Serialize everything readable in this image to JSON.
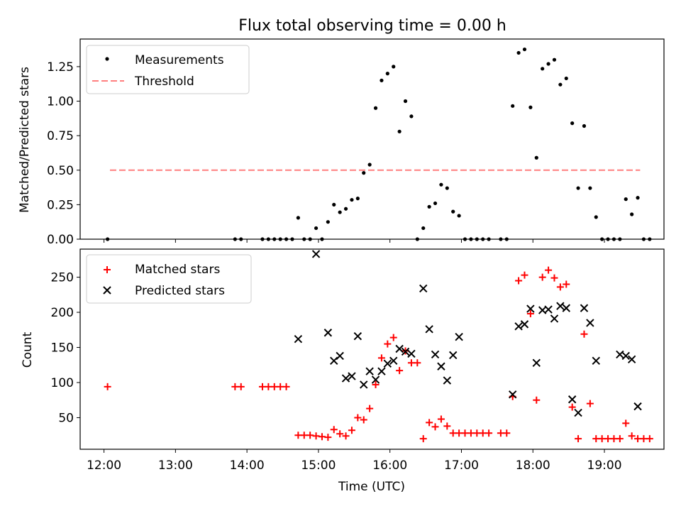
{
  "chart_data": [
    {
      "type": "scatter",
      "title": "Flux total observing time = 0.00 h",
      "xlabel": "",
      "ylabel": "Matched/Predicted stars",
      "xlim": [
        "11:40",
        "19:50"
      ],
      "ylim": [
        0,
        1.45
      ],
      "y_ticks": [
        "0.00",
        "0.25",
        "0.50",
        "0.75",
        "1.00",
        "1.25"
      ],
      "y_tick_values": [
        0,
        0.25,
        0.5,
        0.75,
        1.0,
        1.25
      ],
      "grid": false,
      "legend_position": "top-left",
      "threshold": {
        "name": "Threshold",
        "value": 0.5,
        "x_start": "12:05",
        "x_end": "19:30",
        "color": "#ff7f7f"
      },
      "series": [
        {
          "name": "Measurements",
          "marker": "dot",
          "color": "#000000",
          "points": [
            [
              "12:03",
              0.0
            ],
            [
              "13:50",
              0.0
            ],
            [
              "13:55",
              0.0
            ],
            [
              "14:13",
              0.0
            ],
            [
              "14:18",
              0.0
            ],
            [
              "14:23",
              0.0
            ],
            [
              "14:28",
              0.0
            ],
            [
              "14:33",
              0.0
            ],
            [
              "14:38",
              0.0
            ],
            [
              "14:43",
              0.155
            ],
            [
              "14:48",
              0.0
            ],
            [
              "14:53",
              0.0
            ],
            [
              "14:58",
              0.08
            ],
            [
              "15:03",
              0.0
            ],
            [
              "15:08",
              0.125
            ],
            [
              "15:13",
              0.25
            ],
            [
              "15:18",
              0.195
            ],
            [
              "15:23",
              0.22
            ],
            [
              "15:28",
              0.285
            ],
            [
              "15:33",
              0.295
            ],
            [
              "15:38",
              0.48
            ],
            [
              "15:43",
              0.54
            ],
            [
              "15:48",
              0.95
            ],
            [
              "15:53",
              1.15
            ],
            [
              "15:58",
              1.2
            ],
            [
              "16:03",
              1.25
            ],
            [
              "16:08",
              0.78
            ],
            [
              "16:13",
              1.0
            ],
            [
              "16:18",
              0.89
            ],
            [
              "16:23",
              0.0
            ],
            [
              "16:28",
              0.08
            ],
            [
              "16:33",
              0.235
            ],
            [
              "16:38",
              0.26
            ],
            [
              "16:43",
              0.395
            ],
            [
              "16:48",
              0.37
            ],
            [
              "16:53",
              0.2
            ],
            [
              "16:58",
              0.17
            ],
            [
              "17:03",
              0.0
            ],
            [
              "17:08",
              0.0
            ],
            [
              "17:13",
              0.0
            ],
            [
              "17:18",
              0.0
            ],
            [
              "17:23",
              0.0
            ],
            [
              "17:33",
              0.0
            ],
            [
              "17:38",
              0.0
            ],
            [
              "17:43",
              0.965
            ],
            [
              "17:48",
              1.35
            ],
            [
              "17:53",
              1.375
            ],
            [
              "17:58",
              0.955
            ],
            [
              "18:03",
              0.59
            ],
            [
              "18:08",
              1.235
            ],
            [
              "18:13",
              1.27
            ],
            [
              "18:18",
              1.3
            ],
            [
              "18:23",
              1.12
            ],
            [
              "18:28",
              1.165
            ],
            [
              "18:33",
              0.84
            ],
            [
              "18:38",
              0.37
            ],
            [
              "18:43",
              0.82
            ],
            [
              "18:48",
              0.37
            ],
            [
              "18:53",
              0.16
            ],
            [
              "18:58",
              0.0
            ],
            [
              "19:03",
              0.0
            ],
            [
              "19:08",
              0.0
            ],
            [
              "19:13",
              0.0
            ],
            [
              "19:18",
              0.29
            ],
            [
              "19:23",
              0.18
            ],
            [
              "19:28",
              0.3
            ],
            [
              "19:33",
              0.0
            ],
            [
              "19:38",
              0.0
            ]
          ]
        }
      ]
    },
    {
      "type": "scatter",
      "title": "",
      "xlabel": "Time (UTC)",
      "ylabel": "Count",
      "xlim": [
        "11:40",
        "19:50"
      ],
      "ylim": [
        5,
        290
      ],
      "x_ticks": [
        "12:00",
        "13:00",
        "14:00",
        "15:00",
        "16:00",
        "17:00",
        "18:00",
        "19:00"
      ],
      "y_ticks": [
        "50",
        "100",
        "150",
        "200",
        "250"
      ],
      "y_tick_values": [
        50,
        100,
        150,
        200,
        250
      ],
      "grid": false,
      "legend_position": "top-left",
      "series": [
        {
          "name": "Matched stars",
          "marker": "plus",
          "color": "#ff0000",
          "points": [
            [
              "12:03",
              94
            ],
            [
              "13:50",
              94
            ],
            [
              "13:55",
              94
            ],
            [
              "14:13",
              94
            ],
            [
              "14:18",
              94
            ],
            [
              "14:23",
              94
            ],
            [
              "14:28",
              94
            ],
            [
              "14:33",
              94
            ],
            [
              "14:43",
              25
            ],
            [
              "14:48",
              25
            ],
            [
              "14:53",
              25
            ],
            [
              "14:58",
              24
            ],
            [
              "15:03",
              23
            ],
            [
              "15:08",
              22
            ],
            [
              "15:13",
              33
            ],
            [
              "15:18",
              27
            ],
            [
              "15:23",
              24
            ],
            [
              "15:28",
              32
            ],
            [
              "15:33",
              50
            ],
            [
              "15:38",
              47
            ],
            [
              "15:43",
              63
            ],
            [
              "15:48",
              97
            ],
            [
              "15:53",
              135
            ],
            [
              "15:58",
              155
            ],
            [
              "16:03",
              164
            ],
            [
              "16:08",
              117
            ],
            [
              "16:13",
              145
            ],
            [
              "16:18",
              128
            ],
            [
              "16:23",
              128
            ],
            [
              "16:28",
              20
            ],
            [
              "16:33",
              43
            ],
            [
              "16:38",
              37
            ],
            [
              "16:43",
              48
            ],
            [
              "16:48",
              38
            ],
            [
              "16:53",
              28
            ],
            [
              "16:58",
              28
            ],
            [
              "17:03",
              28
            ],
            [
              "17:08",
              28
            ],
            [
              "17:13",
              28
            ],
            [
              "17:18",
              28
            ],
            [
              "17:23",
              28
            ],
            [
              "17:33",
              28
            ],
            [
              "17:38",
              28
            ],
            [
              "17:43",
              80
            ],
            [
              "17:48",
              245
            ],
            [
              "17:53",
              253
            ],
            [
              "17:58",
              198
            ],
            [
              "18:03",
              75
            ],
            [
              "18:08",
              250
            ],
            [
              "18:13",
              260
            ],
            [
              "18:18",
              249
            ],
            [
              "18:23",
              236
            ],
            [
              "18:28",
              240
            ],
            [
              "18:33",
              65
            ],
            [
              "18:38",
              20
            ],
            [
              "18:43",
              169
            ],
            [
              "18:48",
              70
            ],
            [
              "18:53",
              20
            ],
            [
              "18:58",
              20
            ],
            [
              "19:03",
              20
            ],
            [
              "19:08",
              20
            ],
            [
              "19:13",
              20
            ],
            [
              "19:18",
              42
            ],
            [
              "19:23",
              24
            ],
            [
              "19:28",
              20
            ],
            [
              "19:33",
              20
            ],
            [
              "19:38",
              20
            ]
          ]
        },
        {
          "name": "Predicted stars",
          "marker": "x",
          "color": "#000000",
          "points": [
            [
              "14:43",
              162
            ],
            [
              "14:58",
              283
            ],
            [
              "15:08",
              171
            ],
            [
              "15:13",
              131
            ],
            [
              "15:18",
              138
            ],
            [
              "15:23",
              106
            ],
            [
              "15:28",
              109
            ],
            [
              "15:33",
              166
            ],
            [
              "15:38",
              97
            ],
            [
              "15:43",
              116
            ],
            [
              "15:48",
              104
            ],
            [
              "15:53",
              116
            ],
            [
              "15:58",
              127
            ],
            [
              "16:03",
              131
            ],
            [
              "16:08",
              148
            ],
            [
              "16:13",
              144
            ],
            [
              "16:18",
              141
            ],
            [
              "16:28",
              234
            ],
            [
              "16:33",
              176
            ],
            [
              "16:38",
              140
            ],
            [
              "16:43",
              123
            ],
            [
              "16:48",
              103
            ],
            [
              "16:53",
              139
            ],
            [
              "16:58",
              165
            ],
            [
              "17:43",
              83
            ],
            [
              "17:48",
              180
            ],
            [
              "17:53",
              183
            ],
            [
              "17:58",
              205
            ],
            [
              "18:03",
              128
            ],
            [
              "18:08",
              203
            ],
            [
              "18:13",
              204
            ],
            [
              "18:18",
              191
            ],
            [
              "18:23",
              209
            ],
            [
              "18:28",
              206
            ],
            [
              "18:33",
              76
            ],
            [
              "18:38",
              57
            ],
            [
              "18:43",
              206
            ],
            [
              "18:48",
              185
            ],
            [
              "18:53",
              131
            ],
            [
              "19:13",
              140
            ],
            [
              "19:18",
              138
            ],
            [
              "19:23",
              133
            ],
            [
              "19:28",
              66
            ]
          ]
        }
      ]
    }
  ]
}
